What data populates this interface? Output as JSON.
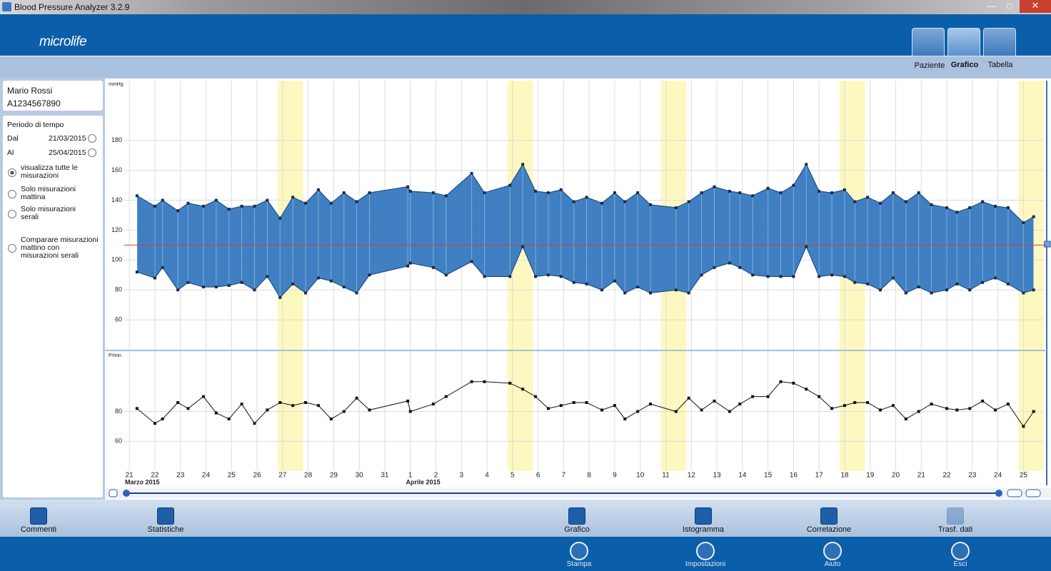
{
  "window": {
    "title": "Blood Pressure Analyzer 3.2.9"
  },
  "header": {
    "logo": "microlife",
    "views": [
      "Paziente",
      "Grafico",
      "Tabella"
    ]
  },
  "patient": {
    "name": "Mario Rossi",
    "id": "A1234567890"
  },
  "period": {
    "title": "Periodo di tempo",
    "from_label": "Dal",
    "from": "21/03/2015",
    "to_label": "Al",
    "to": "25/04/2015",
    "options": [
      "visualizza tutte le misurazioni",
      "Solo misurazioni mattina",
      "Solo misurazioni serali",
      "Comparare misurazioni mattino con misurazioni serali"
    ]
  },
  "chart_data": [
    {
      "type": "range",
      "unit": "mmHg",
      "color": "#3a7cc0",
      "x": [
        0.3,
        1.0,
        1.3,
        1.9,
        2.3,
        2.9,
        3.4,
        3.9,
        4.4,
        4.9,
        5.4,
        5.9,
        6.4,
        6.9,
        7.4,
        7.9,
        8.4,
        8.9,
        9.4,
        10.9,
        11.0,
        11.9,
        12.4,
        13.4,
        13.9,
        14.9,
        15.4,
        15.9,
        16.4,
        16.9,
        17.4,
        17.9,
        18.5,
        19.0,
        19.4,
        19.9,
        20.4,
        21.4,
        21.9,
        22.4,
        22.9,
        23.5,
        23.9,
        24.4,
        25.0,
        25.5,
        26.0,
        26.5,
        27.0,
        27.5,
        28.0,
        28.4,
        28.9,
        29.4,
        29.9,
        30.4,
        30.9,
        31.4,
        32.0,
        32.4,
        32.9,
        33.4,
        33.9,
        34.4,
        35.0,
        35.4
      ],
      "upper": [
        143,
        136,
        140,
        133,
        138,
        136,
        140,
        134,
        136,
        136,
        140,
        128,
        142,
        138,
        147,
        138,
        145,
        139,
        145,
        149,
        146,
        145,
        143,
        158,
        145,
        150,
        164,
        146,
        145,
        147,
        139,
        142,
        138,
        145,
        139,
        145,
        137,
        135,
        139,
        145,
        149,
        146,
        145,
        143,
        148,
        145,
        150,
        164,
        146,
        145,
        147,
        139,
        142,
        138,
        145,
        139,
        145,
        137,
        135,
        132,
        135,
        139,
        136,
        135,
        125,
        129
      ],
      "lower": [
        92,
        88,
        95,
        80,
        85,
        82,
        82,
        83,
        85,
        80,
        89,
        75,
        84,
        78,
        88,
        86,
        82,
        78,
        90,
        96,
        98,
        95,
        90,
        99,
        89,
        89,
        109,
        89,
        90,
        89,
        85,
        84,
        80,
        86,
        78,
        82,
        78,
        80,
        78,
        90,
        95,
        98,
        95,
        90,
        89,
        89,
        89,
        109,
        89,
        90,
        89,
        85,
        84,
        80,
        88,
        78,
        82,
        78,
        80,
        84,
        80,
        85,
        88,
        84,
        78,
        80
      ],
      "reference_line": 110,
      "xlim": [
        -0.2,
        35.8
      ],
      "xticks": [
        {
          "value": 0,
          "label": "21"
        },
        {
          "value": 1,
          "label": "22"
        },
        {
          "value": 2,
          "label": "23"
        },
        {
          "value": 3,
          "label": "24"
        },
        {
          "value": 4,
          "label": "25"
        },
        {
          "value": 5,
          "label": "26"
        },
        {
          "value": 6,
          "label": "27"
        },
        {
          "value": 7,
          "label": "28"
        },
        {
          "value": 8,
          "label": "29"
        },
        {
          "value": 9,
          "label": "30"
        },
        {
          "value": 10,
          "label": "31"
        },
        {
          "value": 11,
          "label": "1"
        },
        {
          "value": 12,
          "label": "2"
        },
        {
          "value": 13,
          "label": "3"
        },
        {
          "value": 14,
          "label": "4"
        },
        {
          "value": 15,
          "label": "5"
        },
        {
          "value": 16,
          "label": "6"
        },
        {
          "value": 17,
          "label": "7"
        },
        {
          "value": 18,
          "label": "8"
        },
        {
          "value": 19,
          "label": "9"
        },
        {
          "value": 20,
          "label": "10"
        },
        {
          "value": 21,
          "label": "11"
        },
        {
          "value": 22,
          "label": "12"
        },
        {
          "value": 23,
          "label": "13"
        },
        {
          "value": 24,
          "label": "14"
        },
        {
          "value": 25,
          "label": "15"
        },
        {
          "value": 26,
          "label": "16"
        },
        {
          "value": 27,
          "label": "17"
        },
        {
          "value": 28,
          "label": "18"
        },
        {
          "value": 29,
          "label": "19"
        },
        {
          "value": 30,
          "label": "20"
        },
        {
          "value": 31,
          "label": "21"
        },
        {
          "value": 32,
          "label": "22"
        },
        {
          "value": 33,
          "label": "23"
        },
        {
          "value": 34,
          "label": "24"
        },
        {
          "value": 35,
          "label": "25"
        }
      ],
      "months": [
        {
          "value": -0.2,
          "label": "Marzo 2015"
        },
        {
          "value": 10.8,
          "label": "Aprile 2015"
        }
      ],
      "highlights": [
        [
          5.8,
          6.8
        ],
        [
          14.8,
          15.8
        ],
        [
          20.8,
          21.8
        ],
        [
          27.8,
          28.8
        ],
        [
          34.8,
          35.8
        ]
      ],
      "ylim": [
        40,
        220
      ],
      "yticks": [
        60,
        80,
        100,
        120,
        140,
        160,
        180
      ],
      "grid": true
    },
    {
      "type": "line",
      "unit": "P/min",
      "color": "#111111",
      "values": [
        82,
        72,
        75,
        86,
        82,
        90,
        79,
        75,
        85,
        72,
        81,
        86,
        84,
        86,
        84,
        75,
        80,
        89,
        81,
        87,
        80,
        85,
        90,
        100,
        100,
        99,
        95,
        90,
        82,
        84,
        86,
        86,
        81,
        84,
        75,
        80,
        85,
        80,
        89,
        81,
        87,
        80,
        85,
        90,
        90,
        100,
        99,
        95,
        90,
        82,
        84,
        86,
        86,
        81,
        84,
        75,
        80,
        85,
        82,
        81,
        82,
        87,
        81,
        85,
        70,
        80
      ],
      "ylim": [
        40,
        120
      ],
      "yticks": [
        60,
        80
      ],
      "grid": true
    }
  ],
  "toolbar": [
    "Commenti",
    "Statistiche",
    "Grafico",
    "Istogramma",
    "Correlazione",
    "Trasf. dati"
  ],
  "footer": [
    "Stampa",
    "Impostazioni",
    "Aiuto",
    "Esci"
  ]
}
